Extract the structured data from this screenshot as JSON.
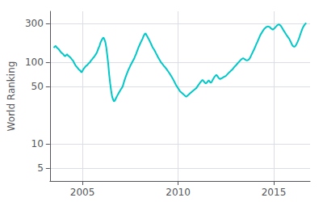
{
  "chart_data": {
    "type": "line",
    "ylabel": "World Ranking",
    "color": "#00c8c8",
    "log": "y",
    "grid": true,
    "xlim": [
      2003.3,
      2016.9
    ],
    "ylim": [
      3.5,
      420
    ],
    "xticks": [
      2005,
      2010,
      2015
    ],
    "yticks": [
      5,
      10,
      50,
      100,
      300
    ],
    "x": [
      2003.5,
      2003.55,
      2003.6,
      2003.65,
      2003.7,
      2003.75,
      2003.8,
      2003.85,
      2003.9,
      2003.95,
      2004.0,
      2004.05,
      2004.1,
      2004.15,
      2004.2,
      2004.25,
      2004.3,
      2004.35,
      2004.4,
      2004.45,
      2004.5,
      2004.55,
      2004.6,
      2004.65,
      2004.7,
      2004.75,
      2004.8,
      2004.85,
      2004.9,
      2004.95,
      2005.0,
      2005.05,
      2005.1,
      2005.15,
      2005.2,
      2005.25,
      2005.3,
      2005.35,
      2005.4,
      2005.45,
      2005.5,
      2005.55,
      2005.6,
      2005.65,
      2005.7,
      2005.75,
      2005.8,
      2005.85,
      2005.9,
      2005.95,
      2006.0,
      2006.05,
      2006.1,
      2006.15,
      2006.2,
      2006.25,
      2006.3,
      2006.35,
      2006.4,
      2006.45,
      2006.5,
      2006.55,
      2006.6,
      2006.65,
      2006.7,
      2006.75,
      2006.8,
      2006.85,
      2006.9,
      2006.95,
      2007.0,
      2007.05,
      2007.1,
      2007.15,
      2007.2,
      2007.25,
      2007.3,
      2007.35,
      2007.4,
      2007.45,
      2007.5,
      2007.55,
      2007.6,
      2007.65,
      2007.7,
      2007.75,
      2007.8,
      2007.85,
      2007.9,
      2007.95,
      2008.0,
      2008.05,
      2008.1,
      2008.15,
      2008.2,
      2008.25,
      2008.3,
      2008.35,
      2008.4,
      2008.45,
      2008.5,
      2008.55,
      2008.6,
      2008.65,
      2008.7,
      2008.75,
      2008.8,
      2008.85,
      2008.9,
      2008.95,
      2009.0,
      2009.05,
      2009.1,
      2009.15,
      2009.2,
      2009.25,
      2009.3,
      2009.35,
      2009.4,
      2009.45,
      2009.5,
      2009.55,
      2009.6,
      2009.65,
      2009.7,
      2009.75,
      2009.8,
      2009.85,
      2009.9,
      2009.95,
      2010.0,
      2010.05,
      2010.1,
      2010.15,
      2010.2,
      2010.25,
      2010.3,
      2010.35,
      2010.4,
      2010.45,
      2010.5,
      2010.55,
      2010.6,
      2010.65,
      2010.7,
      2010.75,
      2010.8,
      2010.85,
      2010.9,
      2010.95,
      2011.0,
      2011.05,
      2011.1,
      2011.15,
      2011.2,
      2011.25,
      2011.3,
      2011.35,
      2011.4,
      2011.45,
      2011.5,
      2011.55,
      2011.6,
      2011.65,
      2011.7,
      2011.75,
      2011.8,
      2011.85,
      2011.9,
      2011.95,
      2012.0,
      2012.05,
      2012.1,
      2012.15,
      2012.2,
      2012.25,
      2012.3,
      2012.35,
      2012.4,
      2012.45,
      2012.5,
      2012.55,
      2012.6,
      2012.65,
      2012.7,
      2012.75,
      2012.8,
      2012.85,
      2012.9,
      2012.95,
      2013.0,
      2013.05,
      2013.1,
      2013.15,
      2013.2,
      2013.25,
      2013.3,
      2013.35,
      2013.4,
      2013.45,
      2013.5,
      2013.55,
      2013.6,
      2013.65,
      2013.7,
      2013.75,
      2013.8,
      2013.85,
      2013.9,
      2013.95,
      2014.0,
      2014.05,
      2014.1,
      2014.15,
      2014.2,
      2014.25,
      2014.3,
      2014.35,
      2014.4,
      2014.45,
      2014.5,
      2014.55,
      2014.6,
      2014.65,
      2014.7,
      2014.75,
      2014.8,
      2014.85,
      2014.9,
      2014.95,
      2015.0,
      2015.05,
      2015.1,
      2015.15,
      2015.2,
      2015.25,
      2015.3,
      2015.35,
      2015.4,
      2015.45,
      2015.5,
      2015.55,
      2015.6,
      2015.65,
      2015.7,
      2015.75,
      2015.8,
      2015.85,
      2015.9,
      2015.95,
      2016.0,
      2016.05,
      2016.1,
      2016.15,
      2016.2,
      2016.25,
      2016.3,
      2016.35,
      2016.4,
      2016.45,
      2016.5,
      2016.55,
      2016.6,
      2016.65,
      2016.7
    ],
    "values": [
      150,
      155,
      158,
      152,
      148,
      145,
      140,
      135,
      130,
      128,
      125,
      120,
      118,
      122,
      125,
      120,
      118,
      115,
      112,
      108,
      105,
      100,
      95,
      90,
      88,
      85,
      82,
      80,
      78,
      75,
      78,
      82,
      85,
      88,
      90,
      92,
      95,
      98,
      100,
      105,
      108,
      112,
      115,
      120,
      125,
      130,
      140,
      150,
      160,
      175,
      185,
      195,
      200,
      190,
      175,
      150,
      120,
      95,
      70,
      55,
      45,
      38,
      35,
      33,
      34,
      36,
      38,
      40,
      42,
      44,
      46,
      48,
      50,
      55,
      60,
      65,
      70,
      75,
      80,
      85,
      90,
      95,
      100,
      105,
      110,
      118,
      125,
      135,
      145,
      155,
      165,
      175,
      185,
      195,
      210,
      220,
      225,
      215,
      205,
      195,
      185,
      175,
      165,
      155,
      148,
      142,
      135,
      128,
      122,
      115,
      110,
      105,
      100,
      97,
      94,
      90,
      88,
      85,
      82,
      79,
      76,
      73,
      70,
      67,
      64,
      61,
      58,
      55,
      52,
      50,
      48,
      46,
      44,
      43,
      42,
      41,
      40,
      39,
      38,
      38,
      39,
      40,
      41,
      42,
      43,
      44,
      45,
      46,
      47,
      48,
      50,
      52,
      54,
      56,
      58,
      60,
      60,
      58,
      56,
      55,
      56,
      58,
      60,
      58,
      56,
      57,
      60,
      63,
      66,
      68,
      70,
      68,
      65,
      63,
      62,
      63,
      64,
      65,
      66,
      67,
      68,
      70,
      72,
      74,
      76,
      78,
      80,
      82,
      85,
      88,
      90,
      93,
      96,
      99,
      102,
      105,
      108,
      110,
      112,
      110,
      108,
      106,
      105,
      106,
      108,
      112,
      118,
      125,
      132,
      140,
      148,
      158,
      168,
      178,
      190,
      202,
      215,
      225,
      235,
      245,
      255,
      262,
      268,
      272,
      275,
      272,
      268,
      260,
      255,
      250,
      255,
      262,
      270,
      278,
      285,
      290,
      288,
      282,
      272,
      260,
      248,
      238,
      228,
      218,
      210,
      202,
      195,
      185,
      175,
      165,
      158,
      155,
      155,
      160,
      168,
      178,
      190,
      205,
      222,
      240,
      258,
      272,
      285,
      295,
      302
    ]
  }
}
